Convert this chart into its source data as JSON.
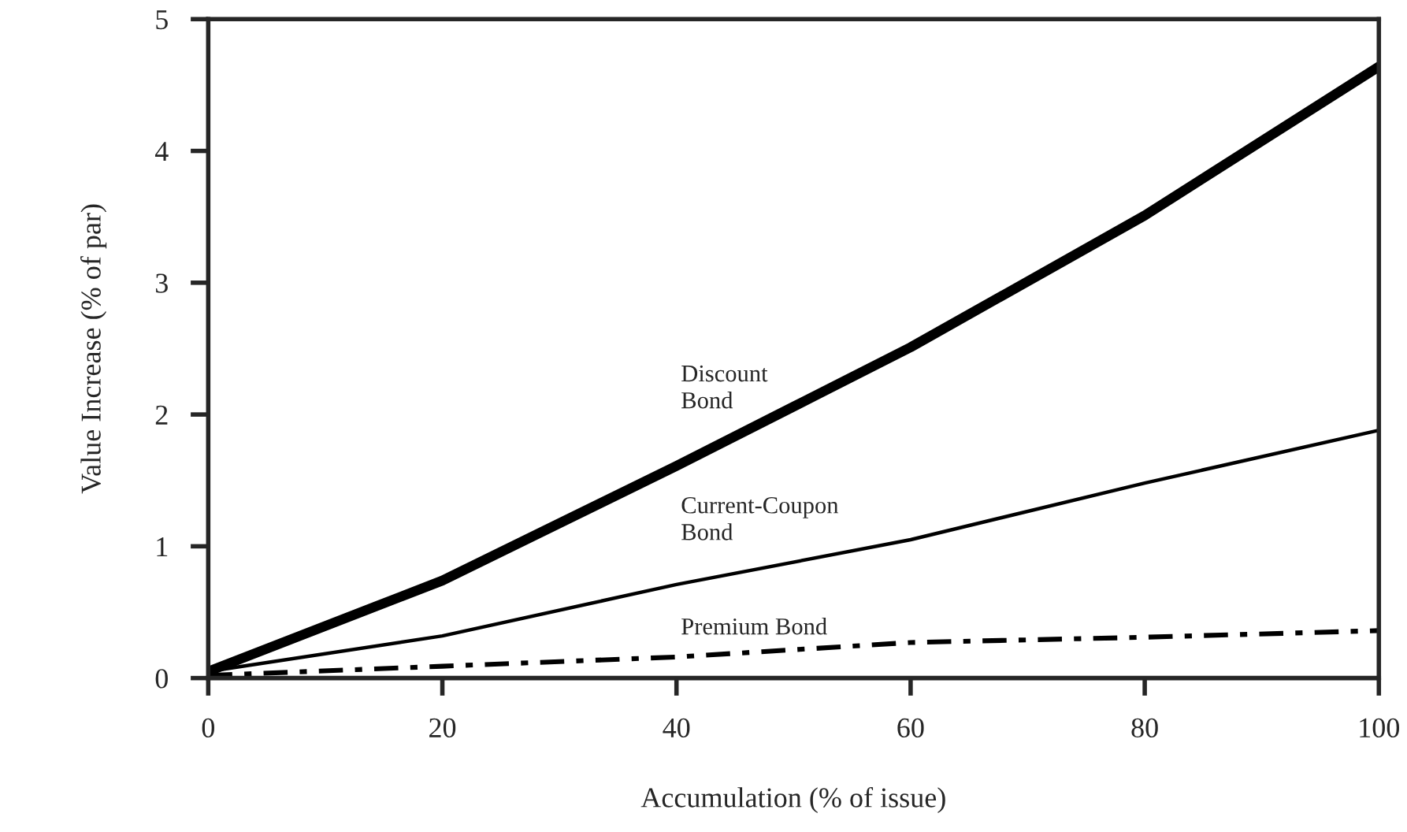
{
  "chart_data": {
    "type": "line",
    "xlabel": "Accumulation (% of issue)",
    "ylabel": "Value Increase (% of par)",
    "x": [
      0,
      20,
      40,
      60,
      80,
      100
    ],
    "series": [
      {
        "name": "Discount\nBond",
        "color": "#000000",
        "line_style": "solid",
        "values": [
          0.05,
          0.74,
          1.61,
          2.51,
          3.51,
          4.64
        ]
      },
      {
        "name": "Current-Coupon\nBond",
        "color": "#000000",
        "line_style": "solid",
        "values": [
          0.05,
          0.32,
          0.71,
          1.05,
          1.48,
          1.88
        ]
      },
      {
        "name": "Premium Bond",
        "color": "#000000",
        "line_style": "dashed",
        "values": [
          0.02,
          0.09,
          0.16,
          0.27,
          0.31,
          0.36
        ]
      }
    ],
    "xlim": [
      0,
      100
    ],
    "xticks": [
      0,
      20,
      40,
      60,
      80,
      100
    ],
    "ylim": [
      0,
      5
    ],
    "yticks": [
      0,
      1,
      2,
      3,
      4,
      5
    ],
    "grid": false,
    "legend": false,
    "marker": "none"
  }
}
